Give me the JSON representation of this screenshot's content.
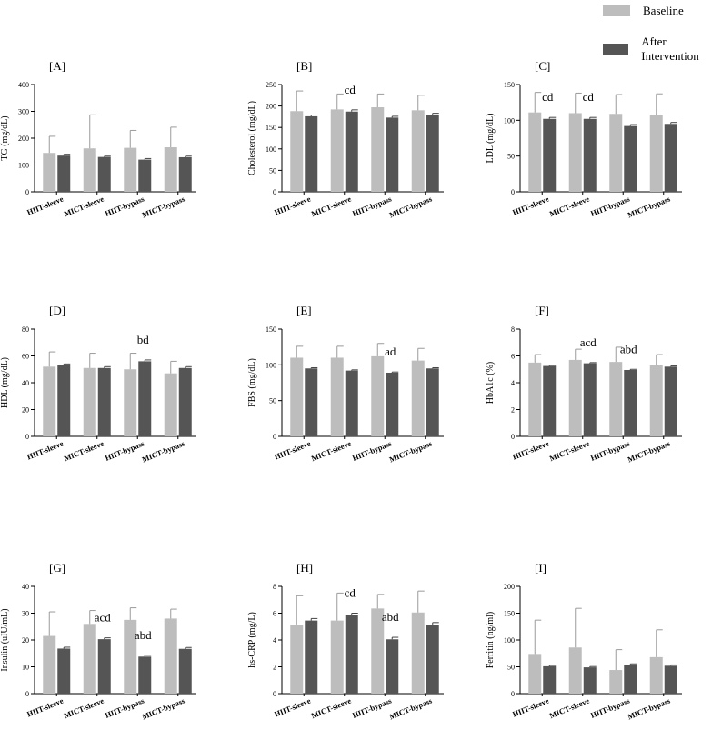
{
  "legend": [
    {
      "label": "Baseline",
      "color": "#bdbdbd"
    },
    {
      "label": "After  Intervention",
      "color": "#555555"
    }
  ],
  "chart_data": [
    {
      "type": "bar",
      "panel": "[A]",
      "ylabel": "TG (mg/dL)",
      "ylim": [
        0,
        400
      ],
      "yticks": [
        0,
        100,
        200,
        300,
        400
      ],
      "categories": [
        "HIIT-sleeve",
        "MICT-sleeve",
        "HIIT-bypass",
        "MICT-bypass"
      ],
      "series": [
        {
          "name": "Baseline",
          "values": [
            145,
            162,
            164,
            166
          ],
          "errors": [
            62,
            125,
            65,
            75
          ]
        },
        {
          "name": "After  Intervention",
          "values": [
            135,
            130,
            120,
            129
          ],
          "errors": [
            5,
            3,
            4,
            4
          ]
        }
      ],
      "annotations": [
        "",
        "",
        "",
        ""
      ]
    },
    {
      "type": "bar",
      "panel": "[B]",
      "ylabel": "Cholesterol (mg/dL)",
      "ylim": [
        0,
        250
      ],
      "yticks": [
        0,
        50,
        100,
        150,
        200,
        250
      ],
      "categories": [
        "HIIT-sleeve",
        "MICT-sleeve",
        "HIIT-bypass",
        "MICT-bypass"
      ],
      "series": [
        {
          "name": "Baseline",
          "values": [
            188,
            192,
            197,
            190
          ],
          "errors": [
            47,
            36,
            31,
            35
          ]
        },
        {
          "name": "After  Intervention",
          "values": [
            176,
            187,
            173,
            180
          ],
          "errors": [
            3,
            4,
            3,
            3
          ]
        }
      ],
      "annotations": [
        "",
        "cd",
        "",
        ""
      ]
    },
    {
      "type": "bar",
      "panel": "[C]",
      "ylabel": "LDL (mg/dL)",
      "ylim": [
        0,
        150
      ],
      "yticks": [
        0,
        50,
        100,
        150
      ],
      "categories": [
        "HIIT-sleeve",
        "MICT-sleeve",
        "HIIT-bypass",
        "MICT-bypass"
      ],
      "series": [
        {
          "name": "Baseline",
          "values": [
            111,
            110,
            109,
            107
          ],
          "errors": [
            28,
            28,
            27,
            30
          ]
        },
        {
          "name": "After  Intervention",
          "values": [
            102,
            102,
            92,
            95
          ],
          "errors": [
            2,
            2,
            2,
            2
          ]
        }
      ],
      "annotations": [
        "cd",
        "cd",
        "",
        ""
      ]
    },
    {
      "type": "bar",
      "panel": "[D]",
      "ylabel": "HDL (mg/dL)",
      "ylim": [
        0,
        80
      ],
      "yticks": [
        0,
        20,
        40,
        60,
        80
      ],
      "categories": [
        "HIIT-sleeve",
        "MICT-sleeve",
        "HIIT-bypass",
        "MICT-bypass"
      ],
      "series": [
        {
          "name": "Baseline",
          "values": [
            52,
            51,
            50,
            47
          ],
          "errors": [
            11,
            11,
            12,
            9
          ]
        },
        {
          "name": "After  Intervention",
          "values": [
            53,
            51,
            56,
            51
          ],
          "errors": [
            1,
            1,
            1,
            1
          ]
        }
      ],
      "annotations": [
        "",
        "",
        "bd",
        ""
      ]
    },
    {
      "type": "bar",
      "panel": "[E]",
      "ylabel": "FBS (mg/dL)",
      "ylim": [
        0,
        150
      ],
      "yticks": [
        0,
        50,
        100,
        150
      ],
      "categories": [
        "HIIT-sleeve",
        "MICT-sleeve",
        "HIIT-bypass",
        "MICT-bypass"
      ],
      "series": [
        {
          "name": "Baseline",
          "values": [
            110,
            110,
            112,
            106
          ],
          "errors": [
            16,
            16,
            18,
            17
          ]
        },
        {
          "name": "After  Intervention",
          "values": [
            95,
            92,
            89,
            95
          ],
          "errors": [
            1,
            1,
            1,
            1
          ]
        }
      ],
      "annotations": [
        "",
        "",
        "ad",
        ""
      ]
    },
    {
      "type": "bar",
      "panel": "[F]",
      "ylabel": "HbA1c (%)",
      "ylim": [
        0,
        8
      ],
      "yticks": [
        0,
        2,
        4,
        6,
        8
      ],
      "categories": [
        "HIIT-sleeve",
        "MICT-sleeve",
        "HIIT-bypass",
        "MICT-bypass"
      ],
      "series": [
        {
          "name": "Baseline",
          "values": [
            5.5,
            5.7,
            5.55,
            5.3
          ],
          "errors": [
            0.6,
            0.8,
            1.1,
            0.8
          ]
        },
        {
          "name": "After  Intervention",
          "values": [
            5.25,
            5.45,
            4.95,
            5.2
          ],
          "errors": [
            0.05,
            0.05,
            0.05,
            0.05
          ]
        }
      ],
      "annotations": [
        "",
        "acd",
        "abd",
        ""
      ]
    },
    {
      "type": "bar",
      "panel": "[G]",
      "ylabel": "Insulin (uIU/mL)",
      "ylim": [
        0,
        40
      ],
      "yticks": [
        0,
        10,
        20,
        30,
        40
      ],
      "categories": [
        "HIIT-sleeve",
        "MICT-sleeve",
        "HIIT-bypass",
        "MICT-bypass"
      ],
      "series": [
        {
          "name": "Baseline",
          "values": [
            21.5,
            26,
            27.5,
            28
          ],
          "errors": [
            9,
            5,
            4.5,
            3.5
          ]
        },
        {
          "name": "After  Intervention",
          "values": [
            16.8,
            20.3,
            13.8,
            16.7
          ],
          "errors": [
            0.5,
            0.5,
            0.5,
            0.5
          ]
        }
      ],
      "annotations": [
        "",
        "acd",
        "abd",
        ""
      ]
    },
    {
      "type": "bar",
      "panel": "[H]",
      "ylabel": "hs-CRP (mg/L)",
      "ylim": [
        0,
        8
      ],
      "yticks": [
        0,
        2,
        4,
        6,
        8
      ],
      "categories": [
        "HIIT-sleeve",
        "MICT-sleeve",
        "HIIT-bypass",
        "MICT-bypass"
      ],
      "series": [
        {
          "name": "Baseline",
          "values": [
            5.1,
            5.45,
            6.35,
            6.05
          ],
          "errors": [
            2.2,
            2.05,
            1.05,
            1.6
          ]
        },
        {
          "name": "After  Intervention",
          "values": [
            5.45,
            5.85,
            4.05,
            5.15
          ],
          "errors": [
            0.15,
            0.15,
            0.15,
            0.15
          ]
        }
      ],
      "annotations": [
        "",
        "cd",
        "abd",
        ""
      ]
    },
    {
      "type": "bar",
      "panel": "[I]",
      "ylabel": "Ferritin (ng/ml)",
      "ylim": [
        0,
        200
      ],
      "yticks": [
        0,
        50,
        100,
        150,
        200
      ],
      "categories": [
        "HIIT-sleeve",
        "MICT-sleeve",
        "HIIT-bypass",
        "MICT-bypass"
      ],
      "series": [
        {
          "name": "Baseline",
          "values": [
            74,
            86,
            44,
            68
          ],
          "errors": [
            63,
            73,
            38,
            51
          ]
        },
        {
          "name": "After  Intervention",
          "values": [
            51,
            49,
            54,
            52
          ],
          "errors": [
            1.5,
            1.5,
            1.5,
            1.5
          ]
        }
      ],
      "annotations": [
        "",
        "",
        "",
        ""
      ]
    }
  ]
}
